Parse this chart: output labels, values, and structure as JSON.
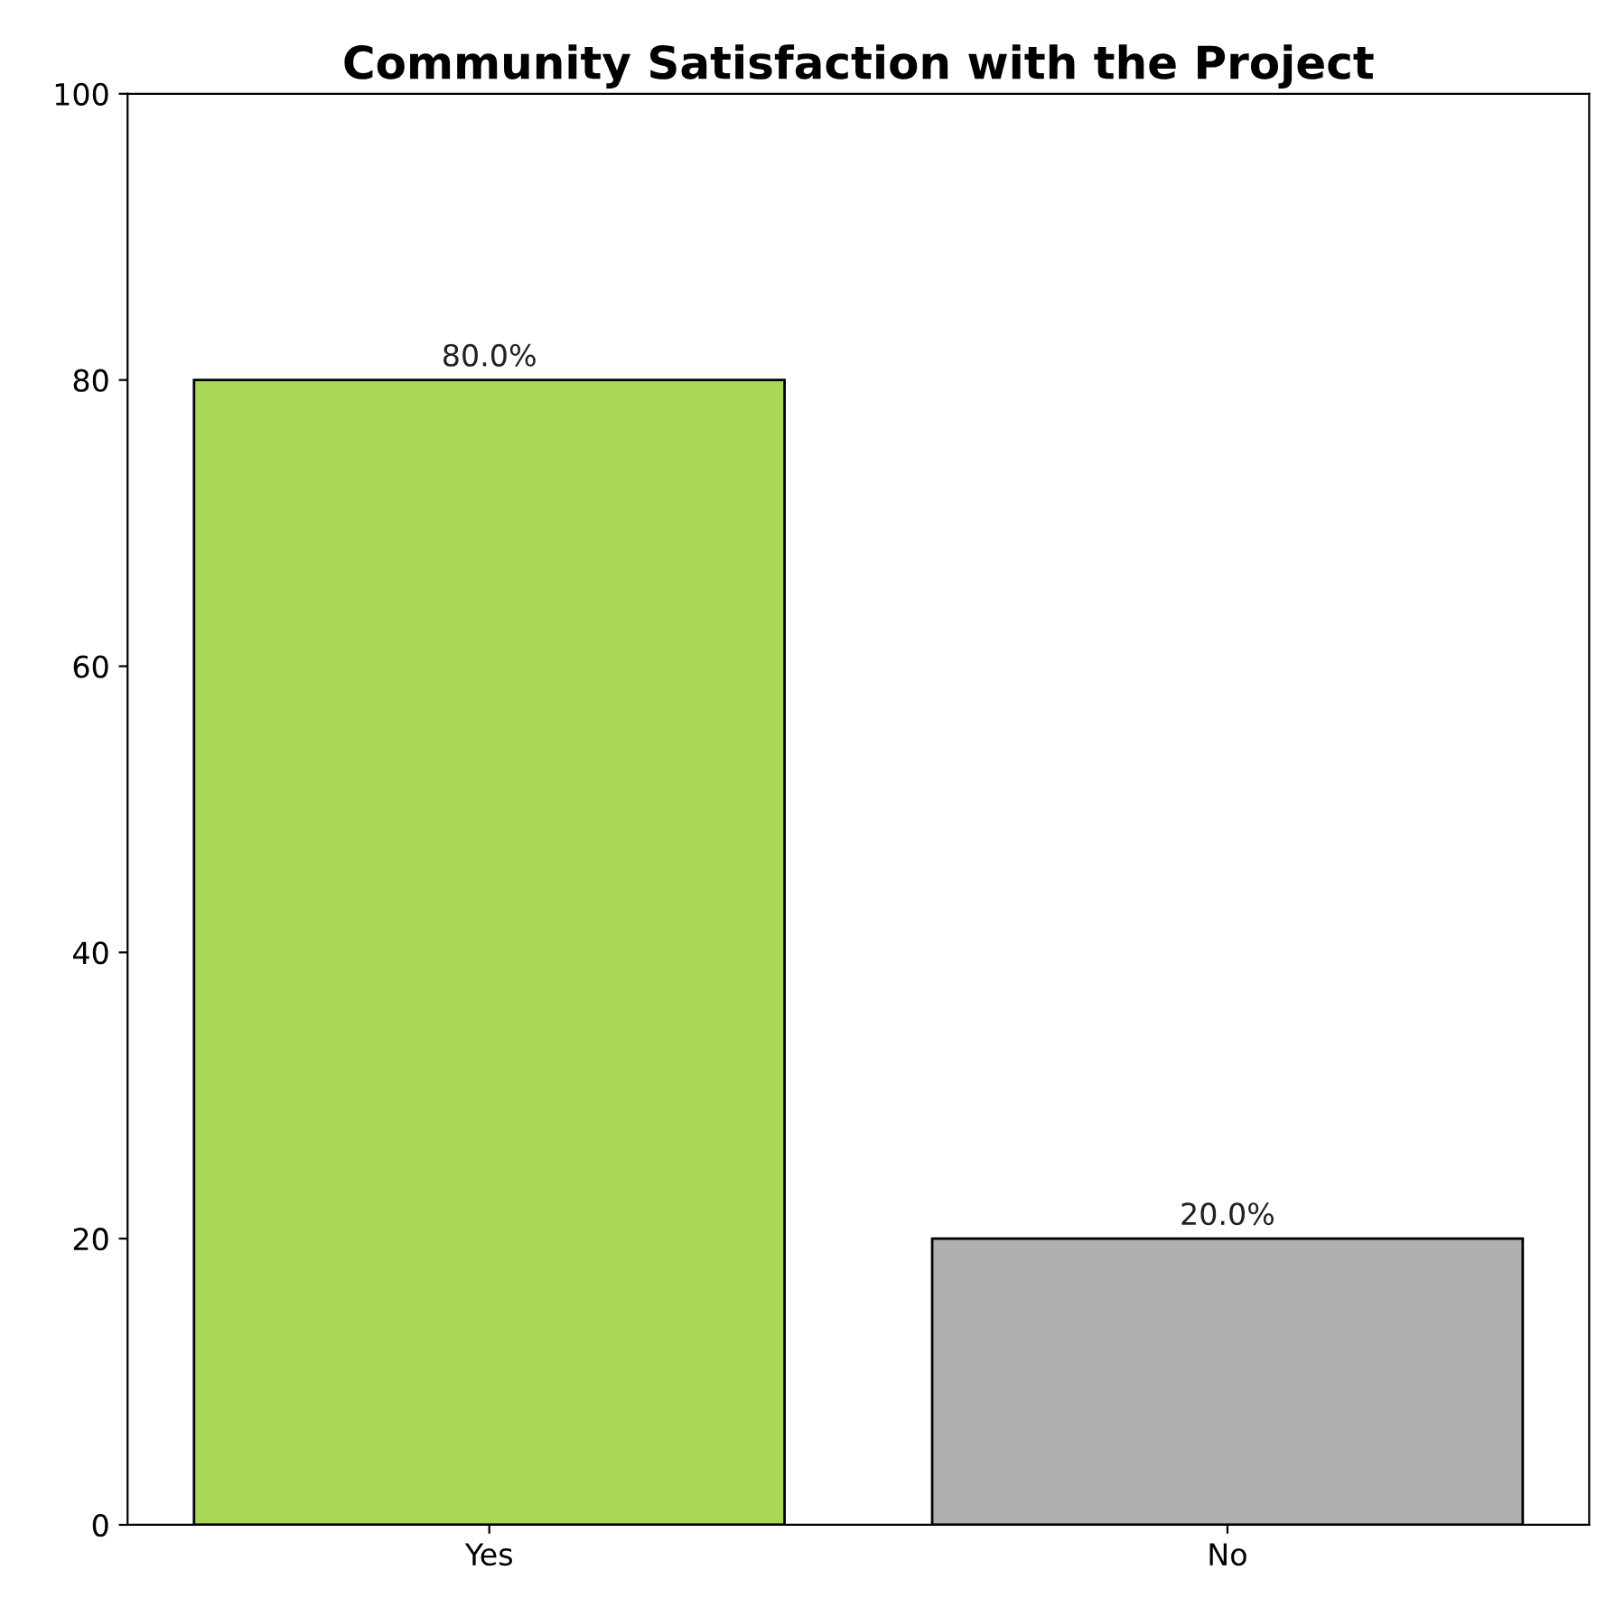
{
  "chart_data": {
    "type": "bar",
    "title": "Community Satisfaction with the Project",
    "categories": [
      "Yes",
      "No"
    ],
    "values": [
      80,
      20
    ],
    "colors": [
      "#a8d856",
      "#b0b0b0"
    ],
    "value_labels": [
      "80.0%",
      "20.0%"
    ],
    "ylim": [
      0,
      100
    ],
    "yticks": [
      0,
      20,
      40,
      60,
      80,
      100
    ],
    "grid": false,
    "legend": false
  }
}
